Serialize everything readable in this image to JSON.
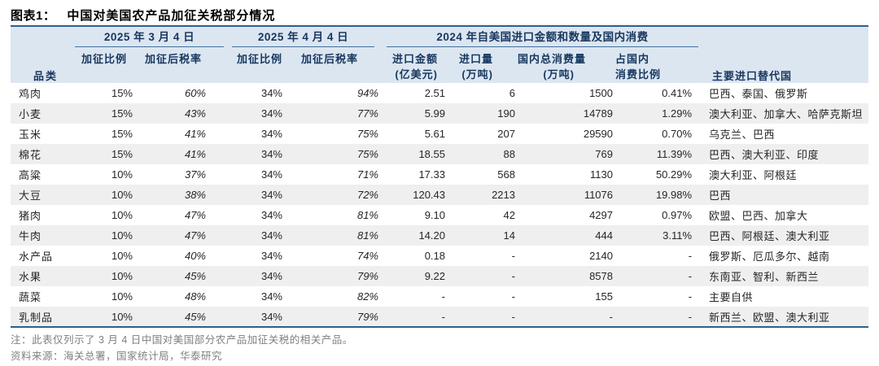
{
  "title": {
    "label": "图表1：",
    "text": "中国对美国农产品加征关税部分情况"
  },
  "table": {
    "col_category": "品类",
    "groups": [
      {
        "label": "2025 年 3 月 4 日"
      },
      {
        "label": "2025 年 4 月 4 日"
      },
      {
        "label": "2024 年自美国进口金额和数量及国内消费"
      },
      {
        "label": "主要进口替代国"
      }
    ],
    "subheaders": {
      "mar_rate": "加征比例",
      "mar_after": "加征后税率",
      "apr_rate": "加征比例",
      "apr_after": "加征后税率",
      "amount_l1": "进口金额",
      "amount_l2": "(亿美元)",
      "volume_l1": "进口量",
      "volume_l2": "(万吨)",
      "consumption_l1": "国内总消费量",
      "consumption_l2": "(万吨)",
      "share_l1": "占国内",
      "share_l2": "消费比例"
    },
    "rows": [
      [
        "鸡肉",
        "15%",
        "60%",
        "34%",
        "94%",
        "2.51",
        "6",
        "1500",
        "0.41%",
        "巴西、泰国、俄罗斯"
      ],
      [
        "小麦",
        "15%",
        "43%",
        "34%",
        "77%",
        "5.99",
        "190",
        "14789",
        "1.29%",
        "澳大利亚、加拿大、哈萨克斯坦"
      ],
      [
        "玉米",
        "15%",
        "41%",
        "34%",
        "75%",
        "5.61",
        "207",
        "29590",
        "0.70%",
        "乌克兰、巴西"
      ],
      [
        "棉花",
        "15%",
        "41%",
        "34%",
        "75%",
        "18.55",
        "88",
        "769",
        "11.39%",
        "巴西、澳大利亚、印度"
      ],
      [
        "高粱",
        "10%",
        "37%",
        "34%",
        "71%",
        "17.33",
        "568",
        "1130",
        "50.29%",
        "澳大利亚、阿根廷"
      ],
      [
        "大豆",
        "10%",
        "38%",
        "34%",
        "72%",
        "120.43",
        "2213",
        "11076",
        "19.98%",
        "巴西"
      ],
      [
        "猪肉",
        "10%",
        "47%",
        "34%",
        "81%",
        "9.10",
        "42",
        "4297",
        "0.97%",
        "欧盟、巴西、加拿大"
      ],
      [
        "牛肉",
        "10%",
        "47%",
        "34%",
        "81%",
        "14.20",
        "14",
        "444",
        "3.11%",
        "巴西、阿根廷、澳大利亚"
      ],
      [
        "水产品",
        "10%",
        "40%",
        "34%",
        "74%",
        "0.18",
        "-",
        "2140",
        "-",
        "俄罗斯、厄瓜多尔、越南"
      ],
      [
        "水果",
        "10%",
        "45%",
        "34%",
        "79%",
        "9.22",
        "-",
        "8578",
        "-",
        "东南亚、智利、新西兰"
      ],
      [
        "蔬菜",
        "10%",
        "48%",
        "34%",
        "82%",
        "-",
        "-",
        "155",
        "-",
        "主要自供"
      ],
      [
        "乳制品",
        "10%",
        "45%",
        "34%",
        "79%",
        "-",
        "-",
        "-",
        "-",
        "新西兰、欧盟、澳大利亚"
      ]
    ]
  },
  "footer": {
    "note": "注：此表仅列示了 3 月 4 日中国对美国部分农产品加征关税的相关产品。",
    "source": "资料来源：海关总署，国家统计局，华泰研究"
  },
  "colors": {
    "header_bg": "#dce6f1",
    "row_stripe": "#efefef",
    "table_border": "#2e5f8f",
    "group_underline": "#41719c",
    "header_text": "#17375e",
    "body_text": "#262626",
    "note_text": "#808080"
  }
}
